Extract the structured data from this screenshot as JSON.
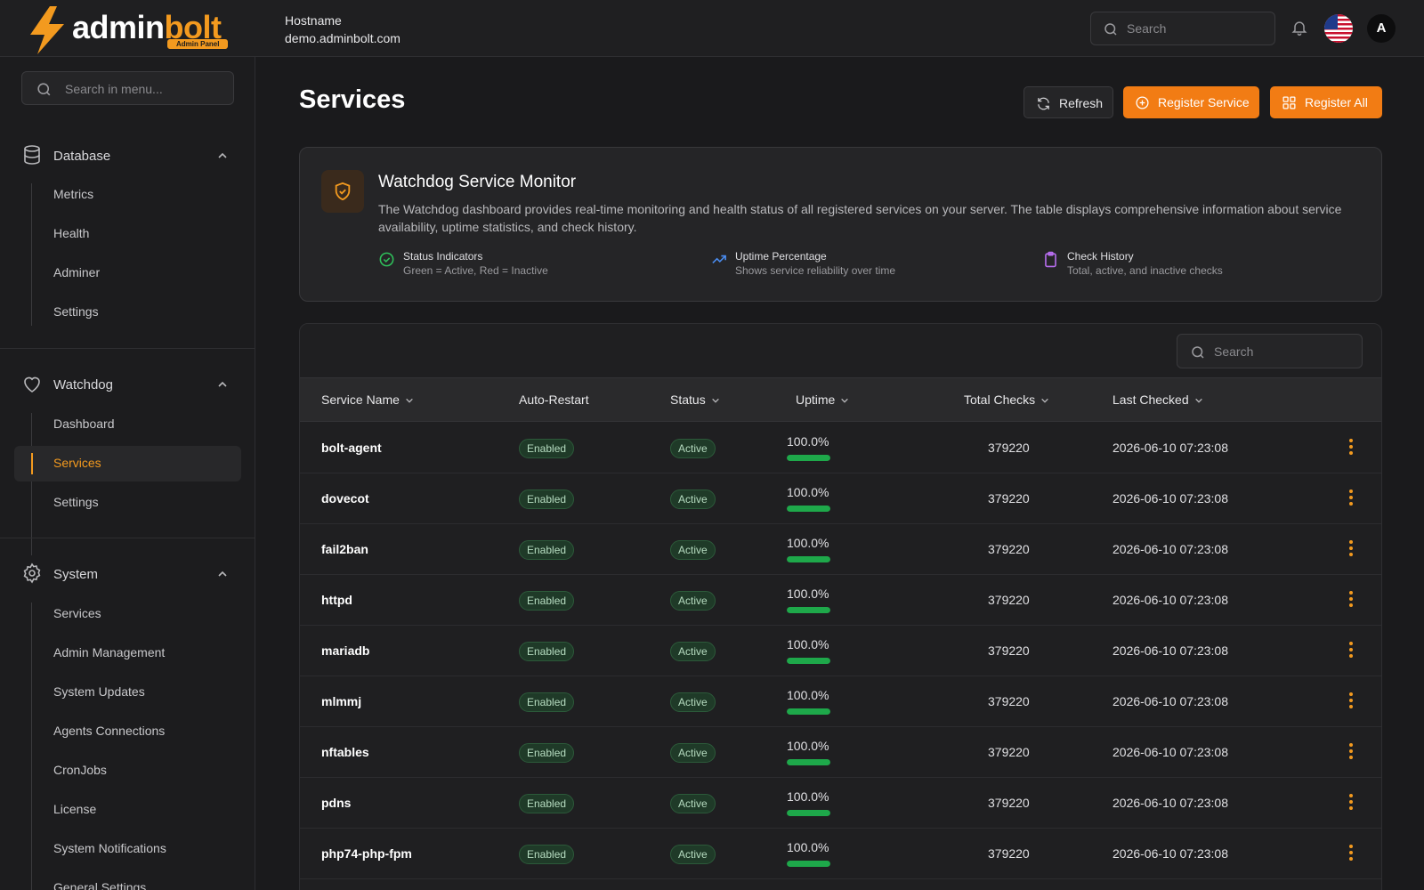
{
  "brand": {
    "name_part1": "admin",
    "name_part2": "bolt",
    "badge": "Admin Panel"
  },
  "header": {
    "hostname_label": "Hostname",
    "hostname_value": "demo.adminbolt.com",
    "search_placeholder": "Search",
    "avatar_initial": "A"
  },
  "sidebar": {
    "search_placeholder": "Search in menu...",
    "groups": [
      {
        "label": "Database",
        "items": [
          "Metrics",
          "Health",
          "Adminer",
          "Settings"
        ]
      },
      {
        "label": "Watchdog",
        "items": [
          "Dashboard",
          "Services",
          "Settings"
        ],
        "active": "Services"
      },
      {
        "label": "System",
        "items": [
          "Services",
          "Admin Management",
          "System Updates",
          "Agents Connections",
          "CronJobs",
          "License",
          "System Notifications",
          "General Settings"
        ]
      }
    ]
  },
  "page": {
    "title": "Services",
    "buttons": {
      "refresh": "Refresh",
      "register_service": "Register Service",
      "register_all": "Register All"
    }
  },
  "info": {
    "title": "Watchdog Service Monitor",
    "description": "The Watchdog dashboard provides real-time monitoring and health status of all registered services on your server. The table displays comprehensive information about service availability, uptime statistics, and check history.",
    "features": [
      {
        "title": "Status Indicators",
        "subtitle": "Green = Active, Red = Inactive"
      },
      {
        "title": "Uptime Percentage",
        "subtitle": "Shows service reliability over time"
      },
      {
        "title": "Check History",
        "subtitle": "Total, active, and inactive checks"
      }
    ]
  },
  "table": {
    "search_placeholder": "Search",
    "columns": [
      "Service Name",
      "Auto-Restart",
      "Status",
      "Uptime",
      "Total Checks",
      "Last Checked"
    ],
    "rows": [
      {
        "name": "bolt-agent",
        "auto_restart": "Enabled",
        "status": "Active",
        "uptime": "100.0%",
        "uptime_fraction": 1.0,
        "checks": "379220",
        "last": "2026-06-10 07:23:08"
      },
      {
        "name": "dovecot",
        "auto_restart": "Enabled",
        "status": "Active",
        "uptime": "100.0%",
        "uptime_fraction": 1.0,
        "checks": "379220",
        "last": "2026-06-10 07:23:08"
      },
      {
        "name": "fail2ban",
        "auto_restart": "Enabled",
        "status": "Active",
        "uptime": "100.0%",
        "uptime_fraction": 1.0,
        "checks": "379220",
        "last": "2026-06-10 07:23:08"
      },
      {
        "name": "httpd",
        "auto_restart": "Enabled",
        "status": "Active",
        "uptime": "100.0%",
        "uptime_fraction": 1.0,
        "checks": "379220",
        "last": "2026-06-10 07:23:08"
      },
      {
        "name": "mariadb",
        "auto_restart": "Enabled",
        "status": "Active",
        "uptime": "100.0%",
        "uptime_fraction": 1.0,
        "checks": "379220",
        "last": "2026-06-10 07:23:08"
      },
      {
        "name": "mlmmj",
        "auto_restart": "Enabled",
        "status": "Active",
        "uptime": "100.0%",
        "uptime_fraction": 1.0,
        "checks": "379220",
        "last": "2026-06-10 07:23:08"
      },
      {
        "name": "nftables",
        "auto_restart": "Enabled",
        "status": "Active",
        "uptime": "100.0%",
        "uptime_fraction": 1.0,
        "checks": "379220",
        "last": "2026-06-10 07:23:08"
      },
      {
        "name": "pdns",
        "auto_restart": "Enabled",
        "status": "Active",
        "uptime": "100.0%",
        "uptime_fraction": 1.0,
        "checks": "379220",
        "last": "2026-06-10 07:23:08"
      },
      {
        "name": "php74-php-fpm",
        "auto_restart": "Enabled",
        "status": "Active",
        "uptime": "100.0%",
        "uptime_fraction": 1.0,
        "checks": "379220",
        "last": "2026-06-10 07:23:08"
      }
    ]
  },
  "colors": {
    "accent": "#f39a1f",
    "button_orange": "#f27c14",
    "success": "#1ea84a",
    "background": "#1a1a1c"
  }
}
